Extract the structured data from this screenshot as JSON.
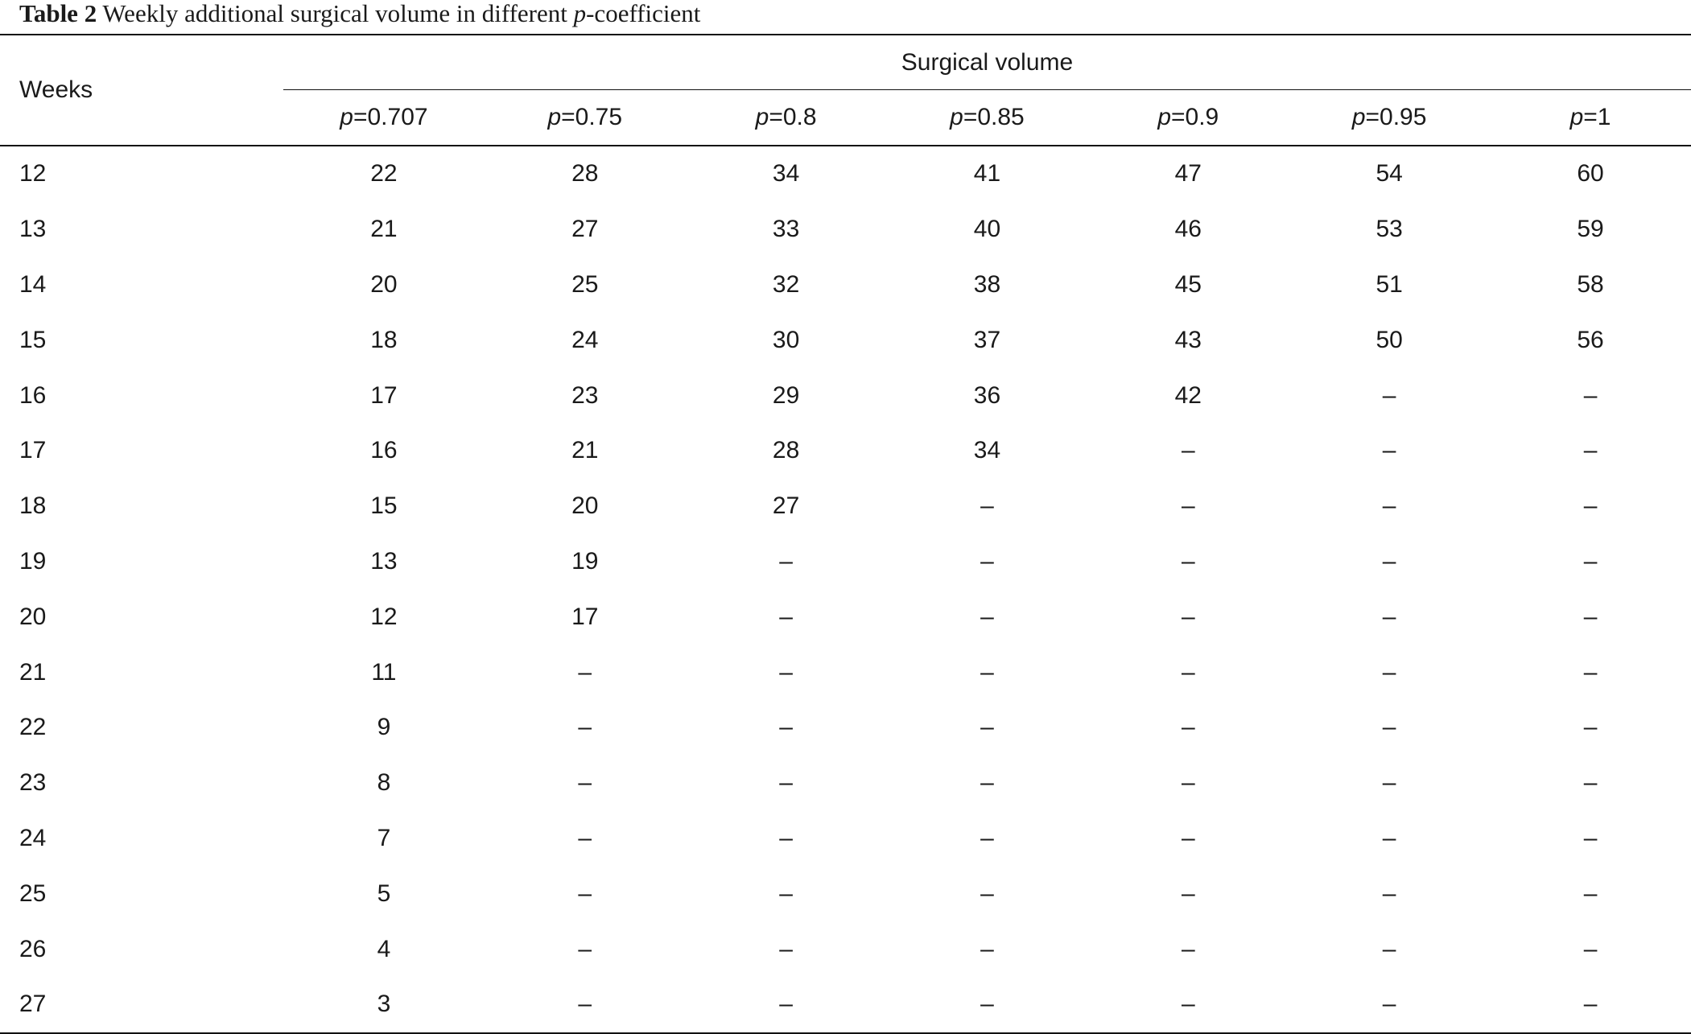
{
  "caption": {
    "label": "Table 2",
    "text_before": "Weekly additional surgical volume in different",
    "italic": "p",
    "text_after": "-coefficient"
  },
  "header": {
    "weeks": "Weeks",
    "group": "Surgical volume",
    "p_symbol": "p",
    "columns": [
      "=0.707",
      "=0.75",
      "=0.8",
      "=0.85",
      "=0.9",
      "=0.95",
      "=1"
    ]
  },
  "rows": [
    {
      "week": "12",
      "values": [
        "22",
        "28",
        "34",
        "41",
        "47",
        "54",
        "60"
      ]
    },
    {
      "week": "13",
      "values": [
        "21",
        "27",
        "33",
        "40",
        "46",
        "53",
        "59"
      ]
    },
    {
      "week": "14",
      "values": [
        "20",
        "25",
        "32",
        "38",
        "45",
        "51",
        "58"
      ]
    },
    {
      "week": "15",
      "values": [
        "18",
        "24",
        "30",
        "37",
        "43",
        "50",
        "56"
      ]
    },
    {
      "week": "16",
      "values": [
        "17",
        "23",
        "29",
        "36",
        "42",
        "–",
        "–"
      ]
    },
    {
      "week": "17",
      "values": [
        "16",
        "21",
        "28",
        "34",
        "–",
        "–",
        "–"
      ]
    },
    {
      "week": "18",
      "values": [
        "15",
        "20",
        "27",
        "–",
        "–",
        "–",
        "–"
      ]
    },
    {
      "week": "19",
      "values": [
        "13",
        "19",
        "–",
        "–",
        "–",
        "–",
        "–"
      ]
    },
    {
      "week": "20",
      "values": [
        "12",
        "17",
        "–",
        "–",
        "–",
        "–",
        "–"
      ]
    },
    {
      "week": "21",
      "values": [
        "11",
        "–",
        "–",
        "–",
        "–",
        "–",
        "–"
      ]
    },
    {
      "week": "22",
      "values": [
        "9",
        "–",
        "–",
        "–",
        "–",
        "–",
        "–"
      ]
    },
    {
      "week": "23",
      "values": [
        "8",
        "–",
        "–",
        "–",
        "–",
        "–",
        "–"
      ]
    },
    {
      "week": "24",
      "values": [
        "7",
        "–",
        "–",
        "–",
        "–",
        "–",
        "–"
      ]
    },
    {
      "week": "25",
      "values": [
        "5",
        "–",
        "–",
        "–",
        "–",
        "–",
        "–"
      ]
    },
    {
      "week": "26",
      "values": [
        "4",
        "–",
        "–",
        "–",
        "–",
        "–",
        "–"
      ]
    },
    {
      "week": "27",
      "values": [
        "3",
        "–",
        "–",
        "–",
        "–",
        "–",
        "–"
      ]
    }
  ]
}
